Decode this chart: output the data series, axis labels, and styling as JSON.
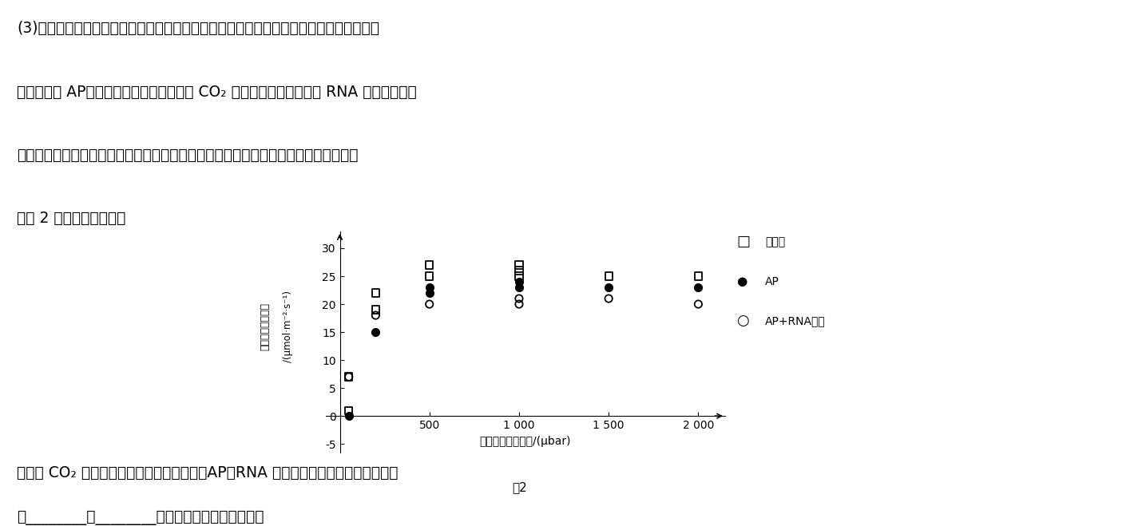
{
  "title_lines": [
    "(3)根据对光呼吸机理的研究，科研人员利用基因编辑手段设计了只在叶绻体中完成的光呼",
    "吸替代途径 AP（依然具有降解乙醇酸产生 CO₂ 的能力）。同时，利用 RNA 干扰技术，降",
    "低叶绻体膜上乙醇酸转运蛋白的表达量。检测三种不同类型植株的光合速率，实验结果",
    "如图 2 所示。据此回答："
  ],
  "bottom_lines": [
    "当胞间 CO₂ 浓度较高时，三种类型植株中，AP＋RNA 干扰型光合速率最高的原因可能",
    "是________，________，进而促进光合作用过程。"
  ],
  "xlabel": "胞间二氧化碳浓度/(μbar)",
  "ylabel_line1": "二氧化碳同化速率",
  "ylabel_line2": "/(μmol·m⁻²·s⁻¹)",
  "figure_label": "图2",
  "xlim": [
    -80,
    2150
  ],
  "ylim": [
    -6.5,
    33
  ],
  "xtick_vals": [
    0,
    500,
    1000,
    1500,
    2000
  ],
  "xtick_labels": [
    "",
    "500",
    "1 000",
    "1 500",
    "2 000"
  ],
  "ytick_vals": [
    -5,
    0,
    5,
    10,
    15,
    20,
    25,
    30
  ],
  "ytick_labels": [
    "-5",
    "0",
    "5",
    "10",
    "15",
    "20",
    "25",
    "30"
  ],
  "legend_labels": [
    "野生型",
    "AP",
    "AP+RNA干扰"
  ],
  "wild_type_x": [
    50,
    50,
    200,
    200,
    500,
    500,
    1000,
    1000,
    1000,
    1500,
    2000
  ],
  "wild_type_y": [
    1,
    7,
    19,
    22,
    25,
    27,
    25,
    26,
    27,
    25,
    25
  ],
  "ap_x": [
    50,
    200,
    500,
    500,
    1000,
    1000,
    1500,
    2000
  ],
  "ap_y": [
    0,
    15,
    22,
    23,
    23,
    24,
    23,
    23
  ],
  "ap_rna_x": [
    50,
    200,
    500,
    1000,
    1000,
    1500,
    2000
  ],
  "ap_rna_y": [
    7,
    18,
    20,
    20,
    21,
    21,
    20
  ],
  "bg": "#ffffff"
}
